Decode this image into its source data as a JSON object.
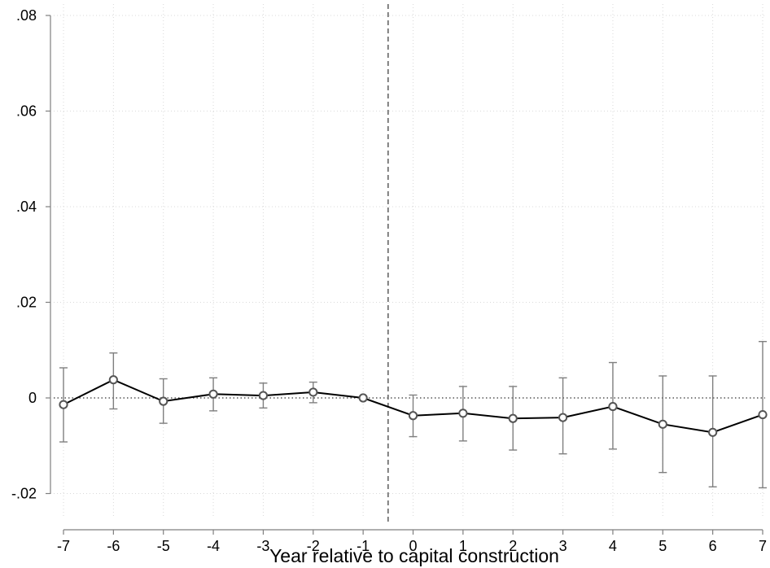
{
  "chart_data": {
    "type": "line",
    "xlabel": "Year relative to capital construction",
    "ylabel": "",
    "x": [
      -7,
      -6,
      -5,
      -4,
      -3,
      -2,
      -1,
      0,
      1,
      2,
      3,
      4,
      5,
      6,
      7
    ],
    "xticks": [
      "-7",
      "-6",
      "-5",
      "-4",
      "-3",
      "-2",
      "-1",
      "0",
      "1",
      "2",
      "3",
      "4",
      "5",
      "6",
      "7"
    ],
    "yticks": [
      {
        "value": -0.02,
        "label": "-.02"
      },
      {
        "value": 0,
        "label": "0"
      },
      {
        "value": 0.02,
        "label": ".02"
      },
      {
        "value": 0.04,
        "label": ".04"
      },
      {
        "value": 0.06,
        "label": ".06"
      },
      {
        "value": 0.08,
        "label": ".08"
      }
    ],
    "ylim": [
      -0.0205,
      0.0815
    ],
    "xlim": [
      -7,
      7
    ],
    "series": [
      {
        "estimates": [
          -0.0014,
          0.0038,
          -0.0007,
          0.0008,
          0.0005,
          0.0012,
          0.0,
          -0.0037,
          -0.0032,
          -0.0043,
          -0.0041,
          -0.0018,
          -0.0055,
          -0.0072,
          -0.0035
        ],
        "ci_lower": [
          -0.0092,
          -0.0023,
          -0.0053,
          -0.0027,
          -0.0021,
          -0.001,
          0.0,
          -0.0081,
          -0.009,
          -0.0109,
          -0.0117,
          -0.0107,
          -0.0156,
          -0.0186,
          -0.0188
        ],
        "ci_upper": [
          0.0063,
          0.0094,
          0.004,
          0.0042,
          0.0031,
          0.0033,
          0.0,
          0.0006,
          0.0024,
          0.0024,
          0.0042,
          0.0074,
          0.0046,
          0.0046,
          0.0118
        ]
      }
    ],
    "reference_lines": {
      "horizontal_y": 0,
      "vertical_x": -0.5
    },
    "grid": true,
    "colors": {
      "line": "#000000",
      "markers": "#555555",
      "error_bars": "#7f7f7f",
      "grid": "#d9d9d9",
      "vertical_line": "#666666",
      "axis": "#7f7f7f"
    }
  }
}
